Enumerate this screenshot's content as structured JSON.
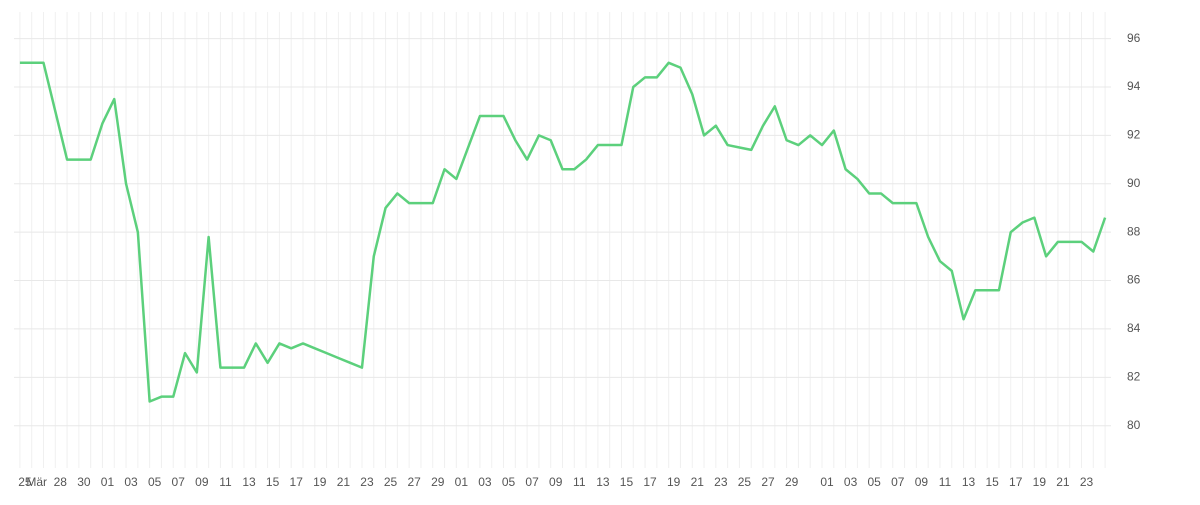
{
  "chart_data": {
    "type": "line",
    "categories": [
      "25",
      "Mär",
      null,
      "28",
      null,
      "30",
      null,
      "01",
      null,
      "03",
      null,
      "05",
      null,
      "07",
      null,
      "09",
      null,
      "11",
      null,
      "13",
      null,
      "15",
      null,
      "17",
      null,
      "19",
      null,
      "21",
      null,
      "23",
      null,
      "25",
      null,
      "27",
      null,
      "29",
      null,
      "01",
      null,
      "03",
      null,
      "05",
      null,
      "07",
      null,
      "09",
      null,
      "11",
      null,
      "13",
      null,
      "15",
      null,
      "17",
      null,
      "19",
      null,
      "21",
      null,
      "23",
      null,
      "25",
      null,
      "27",
      null,
      "29",
      null,
      null,
      "01",
      null,
      "03",
      null,
      "05",
      null,
      "07",
      null,
      "09",
      null,
      "11",
      null,
      "13",
      null,
      "15",
      null,
      "17",
      null,
      "19",
      null,
      "21",
      null,
      "23",
      null,
      null
    ],
    "values": [
      95,
      95,
      95,
      93,
      91,
      91,
      91,
      92.5,
      93.5,
      90,
      88,
      81,
      81.2,
      81.2,
      83,
      82.2,
      87.8,
      82.4,
      82.4,
      82.4,
      83.4,
      82.6,
      83.4,
      83.2,
      83.4,
      83.2,
      83,
      82.8,
      82.6,
      82.4,
      87,
      89,
      89.6,
      89.2,
      89.2,
      89.2,
      90.6,
      90.2,
      91.5,
      92.8,
      92.8,
      92.8,
      91.8,
      91,
      92,
      91.8,
      90.6,
      90.6,
      91,
      91.6,
      91.6,
      91.6,
      94,
      94.4,
      94.4,
      95,
      94.8,
      93.7,
      92,
      92.4,
      91.6,
      91.5,
      91.4,
      92.4,
      93.2,
      91.8,
      91.6,
      92,
      91.6,
      92.2,
      90.6,
      90.2,
      89.6,
      89.6,
      89.2,
      89.2,
      89.2,
      87.8,
      86.8,
      86.4,
      84.4,
      85.6,
      85.6,
      85.6,
      88,
      88.4,
      88.6,
      87,
      87.6,
      87.6,
      87.6,
      87.2,
      88.6
    ],
    "color": "#5cd07c",
    "ylim": [
      78.5,
      97.1
    ],
    "yticks": [
      80,
      82,
      84,
      86,
      88,
      90,
      92,
      94,
      96
    ],
    "grid": true,
    "y_axis_side": "right"
  }
}
